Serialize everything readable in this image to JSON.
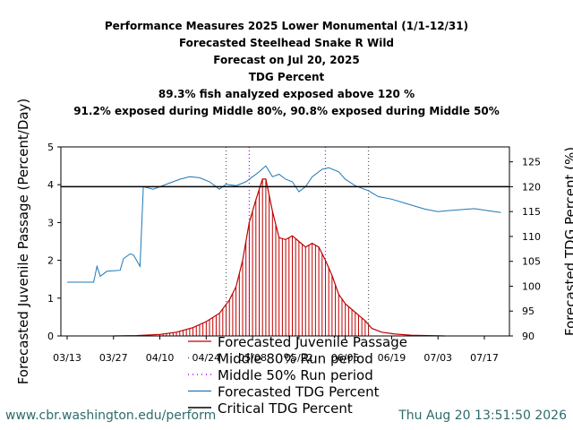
{
  "titles": [
    "Performance Measures 2025 Lower Monumental (1/1-12/31)",
    "Forecasted Steelhead Snake R Wild",
    "Forecast on Jul 20, 2025",
    "TDG Percent",
    "89.3% fish analyzed exposed above 120 %",
    "91.2% exposed during Middle 80%, 90.8% exposed during Middle 50%"
  ],
  "footer": {
    "url": "www.cbr.washington.edu/perform",
    "timestamp": "Thu Aug 20 13:51:50 2026"
  },
  "colors": {
    "passage": "#c00000",
    "tdg": "#1f77b4",
    "critical": "#000000",
    "mid80": "#555555",
    "mid50": "#b000ff",
    "footer": "#2e6b6b"
  },
  "chart_data": {
    "type": "line",
    "ylabel": "Forecasted Juvenile Passage (Percent/Day)",
    "y2label": "Forecasted TDG Percent (%)",
    "ylim": [
      0,
      5
    ],
    "y2lim": [
      90,
      128
    ],
    "yticks": [
      0,
      1,
      2,
      3,
      4,
      5
    ],
    "y2ticks": [
      90,
      95,
      100,
      105,
      110,
      115,
      120,
      125
    ],
    "xticks": [
      "03/13",
      "03/27",
      "04/10",
      "04/24",
      "05/08",
      "05/22",
      "06/05",
      "06/19",
      "07/03",
      "07/17"
    ],
    "critical_tdg": 120,
    "middle80": [
      "04/30",
      "06/12"
    ],
    "middle50": [
      "05/07",
      "05/30"
    ],
    "legend": [
      "Forecasted Juvenile Passage",
      "Middle 80% Run period",
      "Middle 50% Run period",
      "Forecasted TDG Percent",
      "Critical TDG Percent"
    ],
    "passage": {
      "name": "Forecasted Juvenile Passage",
      "points": [
        [
          "03/27",
          0
        ],
        [
          "04/03",
          0.01
        ],
        [
          "04/10",
          0.04
        ],
        [
          "04/15",
          0.1
        ],
        [
          "04/20",
          0.22
        ],
        [
          "04/24",
          0.38
        ],
        [
          "04/28",
          0.6
        ],
        [
          "05/01",
          0.95
        ],
        [
          "05/03",
          1.3
        ],
        [
          "05/05",
          2.0
        ],
        [
          "05/07",
          3.0
        ],
        [
          "05/09",
          3.6
        ],
        [
          "05/11",
          4.15
        ],
        [
          "05/12",
          4.15
        ],
        [
          "05/14",
          3.3
        ],
        [
          "05/16",
          2.6
        ],
        [
          "05/18",
          2.55
        ],
        [
          "05/20",
          2.65
        ],
        [
          "05/22",
          2.5
        ],
        [
          "05/24",
          2.35
        ],
        [
          "05/26",
          2.45
        ],
        [
          "05/28",
          2.35
        ],
        [
          "05/30",
          2.0
        ],
        [
          "06/01",
          1.6
        ],
        [
          "06/03",
          1.1
        ],
        [
          "06/05",
          0.85
        ],
        [
          "06/07",
          0.7
        ],
        [
          "06/09",
          0.55
        ],
        [
          "06/11",
          0.4
        ],
        [
          "06/13",
          0.2
        ],
        [
          "06/16",
          0.1
        ],
        [
          "06/20",
          0.05
        ],
        [
          "06/25",
          0.02
        ],
        [
          "07/05",
          0
        ]
      ]
    },
    "tdg": {
      "name": "Forecasted TDG Percent",
      "points": [
        [
          "03/13",
          100.8
        ],
        [
          "03/21",
          100.8
        ],
        [
          "03/22",
          104
        ],
        [
          "03/23",
          102
        ],
        [
          "03/25",
          103
        ],
        [
          "03/29",
          103.2
        ],
        [
          "03/30",
          105.5
        ],
        [
          "04/01",
          106.5
        ],
        [
          "04/02",
          106.3
        ],
        [
          "04/04",
          104
        ],
        [
          "04/05",
          120
        ],
        [
          "04/08",
          119.5
        ],
        [
          "04/12",
          120.5
        ],
        [
          "04/16",
          121.5
        ],
        [
          "04/19",
          122
        ],
        [
          "04/22",
          121.8
        ],
        [
          "04/25",
          121
        ],
        [
          "04/28",
          119.5
        ],
        [
          "04/30",
          120.5
        ],
        [
          "05/03",
          120.2
        ],
        [
          "05/06",
          121
        ],
        [
          "05/08",
          122
        ],
        [
          "05/10",
          123
        ],
        [
          "05/12",
          124.2
        ],
        [
          "05/14",
          122
        ],
        [
          "05/16",
          122.5
        ],
        [
          "05/18",
          121.5
        ],
        [
          "05/20",
          121
        ],
        [
          "05/22",
          119
        ],
        [
          "05/24",
          120
        ],
        [
          "05/26",
          122
        ],
        [
          "05/29",
          123.5
        ],
        [
          "05/31",
          123.8
        ],
        [
          "06/03",
          123
        ],
        [
          "06/05",
          121.5
        ],
        [
          "06/08",
          120.2
        ],
        [
          "06/12",
          119.2
        ],
        [
          "06/15",
          118
        ],
        [
          "06/19",
          117.5
        ],
        [
          "06/24",
          116.5
        ],
        [
          "06/29",
          115.5
        ],
        [
          "07/03",
          115
        ],
        [
          "07/06",
          115.2
        ],
        [
          "07/10",
          115.4
        ],
        [
          "07/14",
          115.6
        ],
        [
          "07/18",
          115.2
        ],
        [
          "07/22",
          114.8
        ]
      ]
    }
  }
}
